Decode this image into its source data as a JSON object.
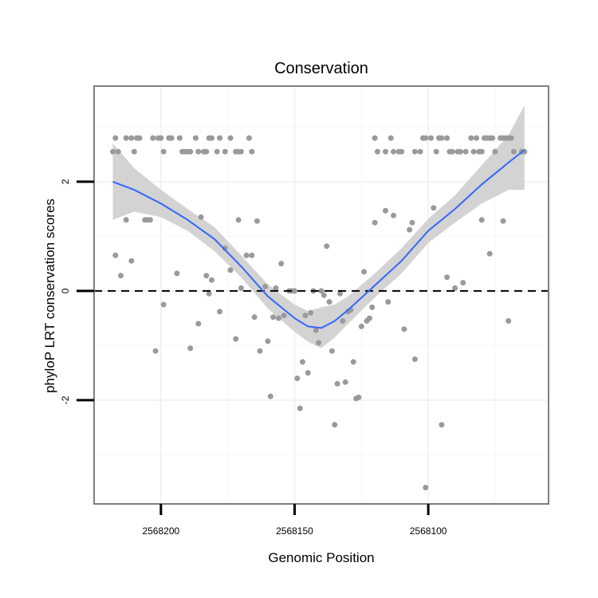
{
  "chart_data": {
    "type": "scatter",
    "title": "Conservation",
    "xlabel": "Genomic Position",
    "ylabel": "phyloP LRT conservation scores",
    "x_reversed": true,
    "xlim": [
      2568225,
      2568055
    ],
    "ylim": [
      -3.9,
      3.75
    ],
    "x_ticks": [
      2568200,
      2568150,
      2568100
    ],
    "x_tick_labels": [
      "2568200",
      "2568150",
      "2568100"
    ],
    "y_ticks": [
      -2,
      0,
      2
    ],
    "y_tick_labels": [
      "-2",
      "0",
      "2"
    ],
    "reference_line": {
      "y": 0,
      "style": "dashed"
    },
    "grid": true,
    "colors": {
      "points": "#9a9a9a",
      "smooth": "#3366ff",
      "band": "#d3d3d3",
      "frame": "#7f7f7f"
    },
    "points": [
      [
        2568218,
        2.55
      ],
      [
        2568217,
        2.8
      ],
      [
        2568216,
        2.55
      ],
      [
        2568213,
        2.8
      ],
      [
        2568211,
        2.8
      ],
      [
        2568210,
        2.55
      ],
      [
        2568209,
        2.8
      ],
      [
        2568208,
        2.8
      ],
      [
        2568203,
        2.8
      ],
      [
        2568201,
        2.8
      ],
      [
        2568200,
        2.8
      ],
      [
        2568199,
        2.55
      ],
      [
        2568197,
        2.8
      ],
      [
        2568196,
        2.8
      ],
      [
        2568193,
        2.8
      ],
      [
        2568192,
        2.55
      ],
      [
        2568191,
        2.55
      ],
      [
        2568190,
        2.55
      ],
      [
        2568189,
        2.55
      ],
      [
        2568187,
        2.8
      ],
      [
        2568186,
        2.55
      ],
      [
        2568184,
        2.55
      ],
      [
        2568183,
        2.55
      ],
      [
        2568182,
        2.8
      ],
      [
        2568181,
        2.8
      ],
      [
        2568179,
        2.55
      ],
      [
        2568178,
        2.8
      ],
      [
        2568176,
        2.55
      ],
      [
        2568174,
        2.8
      ],
      [
        2568172,
        2.55
      ],
      [
        2568171,
        2.55
      ],
      [
        2568170,
        2.55
      ],
      [
        2568167,
        2.8
      ],
      [
        2568166,
        2.55
      ],
      [
        2568185,
        1.35
      ],
      [
        2568213,
        1.3
      ],
      [
        2568206,
        1.3
      ],
      [
        2568205,
        1.3
      ],
      [
        2568204,
        1.3
      ],
      [
        2568217,
        0.65
      ],
      [
        2568211,
        0.55
      ],
      [
        2568215,
        0.28
      ],
      [
        2568194,
        0.32
      ],
      [
        2568202,
        -1.1
      ],
      [
        2568199,
        -0.25
      ],
      [
        2568189,
        -1.05
      ],
      [
        2568186,
        -0.6
      ],
      [
        2568183,
        0.28
      ],
      [
        2568182,
        -0.05
      ],
      [
        2568181,
        0.2
      ],
      [
        2568178,
        -0.38
      ],
      [
        2568176,
        0.78
      ],
      [
        2568174,
        0.38
      ],
      [
        2568172,
        -0.88
      ],
      [
        2568171,
        1.3
      ],
      [
        2568170,
        0.05
      ],
      [
        2568168,
        0.65
      ],
      [
        2568166,
        0.65
      ],
      [
        2568165,
        -0.48
      ],
      [
        2568164,
        1.28
      ],
      [
        2568163,
        -1.1
      ],
      [
        2568161,
        0.08
      ],
      [
        2568160,
        -0.92
      ],
      [
        2568159,
        -1.93
      ],
      [
        2568158,
        -0.48
      ],
      [
        2568157,
        0.05
      ],
      [
        2568156,
        -0.5
      ],
      [
        2568155,
        0.5
      ],
      [
        2568154,
        -0.45
      ],
      [
        2568152,
        0.0
      ],
      [
        2568151,
        0.0
      ],
      [
        2568150,
        0.0
      ],
      [
        2568149,
        -1.6
      ],
      [
        2568148,
        -2.15
      ],
      [
        2568147,
        -1.3
      ],
      [
        2568146,
        -0.45
      ],
      [
        2568145,
        -1.5
      ],
      [
        2568144,
        -0.4
      ],
      [
        2568143,
        0.0
      ],
      [
        2568142,
        -0.72
      ],
      [
        2568141,
        -0.95
      ],
      [
        2568140,
        0.0
      ],
      [
        2568139,
        -0.08
      ],
      [
        2568138,
        0.82
      ],
      [
        2568137,
        -0.2
      ],
      [
        2568136,
        -1.1
      ],
      [
        2568135,
        -2.45
      ],
      [
        2568134,
        -1.7
      ],
      [
        2568133,
        -0.05
      ],
      [
        2568132,
        -0.55
      ],
      [
        2568131,
        -1.67
      ],
      [
        2568130,
        -0.38
      ],
      [
        2568129,
        -0.35
      ],
      [
        2568128,
        -1.3
      ],
      [
        2568127,
        -1.97
      ],
      [
        2568126,
        -1.95
      ],
      [
        2568125,
        -0.65
      ],
      [
        2568124,
        0.35
      ],
      [
        2568123,
        -0.55
      ],
      [
        2568122,
        -0.5
      ],
      [
        2568121,
        -0.3
      ],
      [
        2568120,
        1.25
      ],
      [
        2568116,
        1.47
      ],
      [
        2568115,
        -0.2
      ],
      [
        2568113,
        1.38
      ],
      [
        2568109,
        -0.7
      ],
      [
        2568107,
        1.12
      ],
      [
        2568106,
        1.25
      ],
      [
        2568105,
        -1.25
      ],
      [
        2568101,
        -3.6
      ],
      [
        2568098,
        1.52
      ],
      [
        2568095,
        -2.45
      ],
      [
        2568093,
        0.25
      ],
      [
        2568090,
        0.05
      ],
      [
        2568087,
        0.15
      ],
      [
        2568080,
        1.3
      ],
      [
        2568077,
        0.68
      ],
      [
        2568072,
        1.28
      ],
      [
        2568070,
        -0.55
      ],
      [
        2568120,
        2.8
      ],
      [
        2568119,
        2.55
      ],
      [
        2568116,
        2.55
      ],
      [
        2568114,
        2.8
      ],
      [
        2568113,
        2.55
      ],
      [
        2568111,
        2.55
      ],
      [
        2568110,
        2.55
      ],
      [
        2568105,
        2.55
      ],
      [
        2568103,
        2.55
      ],
      [
        2568102,
        2.8
      ],
      [
        2568101,
        2.8
      ],
      [
        2568099,
        2.8
      ],
      [
        2568097,
        2.55
      ],
      [
        2568096,
        2.8
      ],
      [
        2568095,
        2.8
      ],
      [
        2568093,
        2.8
      ],
      [
        2568092,
        2.55
      ],
      [
        2568091,
        2.55
      ],
      [
        2568089,
        2.55
      ],
      [
        2568088,
        2.55
      ],
      [
        2568086,
        2.55
      ],
      [
        2568084,
        2.8
      ],
      [
        2568083,
        2.55
      ],
      [
        2568082,
        2.8
      ],
      [
        2568081,
        2.55
      ],
      [
        2568080,
        2.55
      ],
      [
        2568079,
        2.8
      ],
      [
        2568078,
        2.8
      ],
      [
        2568077,
        2.8
      ],
      [
        2568076,
        2.8
      ],
      [
        2568075,
        2.55
      ],
      [
        2568073,
        2.8
      ],
      [
        2568072,
        2.8
      ],
      [
        2568071,
        2.8
      ],
      [
        2568070,
        2.8
      ],
      [
        2568069,
        2.8
      ],
      [
        2568068,
        2.55
      ],
      [
        2568065,
        2.55
      ],
      [
        2568064,
        2.55
      ]
    ],
    "smooth_line": [
      [
        2568218,
        2.0
      ],
      [
        2568210,
        1.85
      ],
      [
        2568200,
        1.6
      ],
      [
        2568190,
        1.3
      ],
      [
        2568180,
        0.95
      ],
      [
        2568170,
        0.45
      ],
      [
        2568160,
        -0.1
      ],
      [
        2568150,
        -0.5
      ],
      [
        2568145,
        -0.65
      ],
      [
        2568140,
        -0.68
      ],
      [
        2568135,
        -0.55
      ],
      [
        2568130,
        -0.35
      ],
      [
        2568120,
        0.1
      ],
      [
        2568110,
        0.55
      ],
      [
        2568100,
        1.1
      ],
      [
        2568090,
        1.5
      ],
      [
        2568080,
        1.95
      ],
      [
        2568070,
        2.35
      ],
      [
        2568064,
        2.58
      ]
    ],
    "confidence_band": [
      [
        2568218,
        1.3,
        2.7
      ],
      [
        2568210,
        1.45,
        2.25
      ],
      [
        2568200,
        1.35,
        1.85
      ],
      [
        2568190,
        1.1,
        1.5
      ],
      [
        2568180,
        0.73,
        1.17
      ],
      [
        2568170,
        0.25,
        0.65
      ],
      [
        2568160,
        -0.32,
        0.12
      ],
      [
        2568150,
        -0.75,
        -0.25
      ],
      [
        2568145,
        -0.93,
        -0.37
      ],
      [
        2568140,
        -1.05,
        -0.3
      ],
      [
        2568135,
        -0.85,
        -0.25
      ],
      [
        2568130,
        -0.6,
        -0.1
      ],
      [
        2568120,
        -0.12,
        0.32
      ],
      [
        2568110,
        0.32,
        0.78
      ],
      [
        2568100,
        0.88,
        1.32
      ],
      [
        2568090,
        1.25,
        1.75
      ],
      [
        2568080,
        1.6,
        2.3
      ],
      [
        2568070,
        1.85,
        2.85
      ],
      [
        2568064,
        1.85,
        3.4
      ]
    ]
  }
}
